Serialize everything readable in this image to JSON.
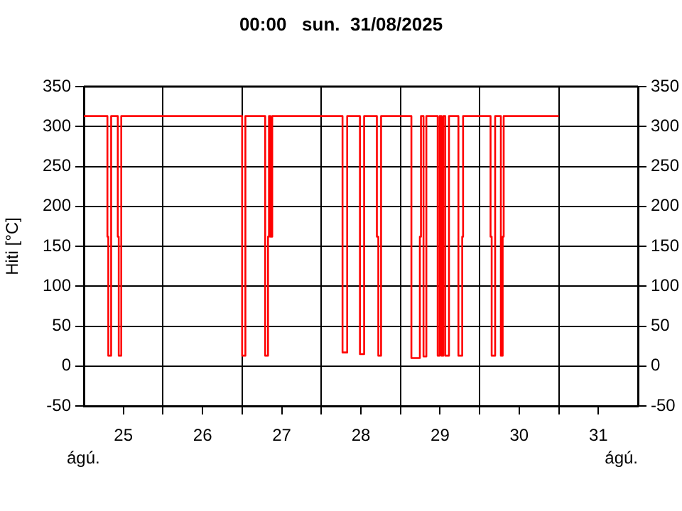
{
  "chart_data": {
    "type": "step",
    "title": "00:00   sun.  31/08/2025",
    "ylabel": "Hiti [°C]",
    "x": [
      25.0,
      25.298,
      25.309,
      25.345,
      25.429,
      25.441,
      25.473,
      27.0,
      27.041,
      27.291,
      27.327,
      27.339,
      27.357,
      27.38,
      28.268,
      28.327,
      28.488,
      28.541,
      28.702,
      28.72,
      28.755,
      29.138,
      29.245,
      29.259,
      29.291,
      29.327,
      29.47,
      29.495,
      29.518,
      29.541,
      29.566,
      29.613,
      29.732,
      29.78,
      29.791,
      30.138,
      30.152,
      30.196,
      30.268,
      30.291,
      30.304,
      31.0
    ],
    "series": [
      {
        "color": "#ff0000",
        "values": [
          313,
          162,
          13,
          313,
          162,
          13,
          313,
          13,
          313,
          13,
          162,
          313,
          162,
          313,
          17,
          313,
          15,
          313,
          162,
          13,
          313,
          10,
          162,
          313,
          12,
          313,
          13,
          313,
          13,
          313,
          13,
          313,
          13,
          162,
          313,
          162,
          13,
          313,
          13,
          162,
          313,
          313
        ]
      }
    ],
    "xlim": [
      25,
      32
    ],
    "xticks": [
      {
        "value": 25.5,
        "label": "25"
      },
      {
        "value": 26,
        "label": null
      },
      {
        "value": 26.5,
        "label": "26"
      },
      {
        "value": 27,
        "label": null
      },
      {
        "value": 27.5,
        "label": "27"
      },
      {
        "value": 28,
        "label": null
      },
      {
        "value": 28.5,
        "label": "28"
      },
      {
        "value": 29,
        "label": null
      },
      {
        "value": 29.5,
        "label": "29"
      },
      {
        "value": 30,
        "label": null
      },
      {
        "value": 30.5,
        "label": "30"
      },
      {
        "value": 31,
        "label": null
      },
      {
        "value": 31.5,
        "label": "31"
      }
    ],
    "ylim": [
      -50,
      350
    ],
    "yticks": [
      -50,
      0,
      50,
      100,
      150,
      200,
      250,
      300,
      350
    ],
    "y2lim": [
      -50,
      350
    ],
    "y2ticks": [
      -50,
      0,
      50,
      100,
      150,
      200,
      250,
      300,
      350
    ],
    "annotations": [
      "ágú.",
      "ágú."
    ],
    "grid": true,
    "legend": false,
    "marker": "none",
    "line_style": "solid"
  }
}
